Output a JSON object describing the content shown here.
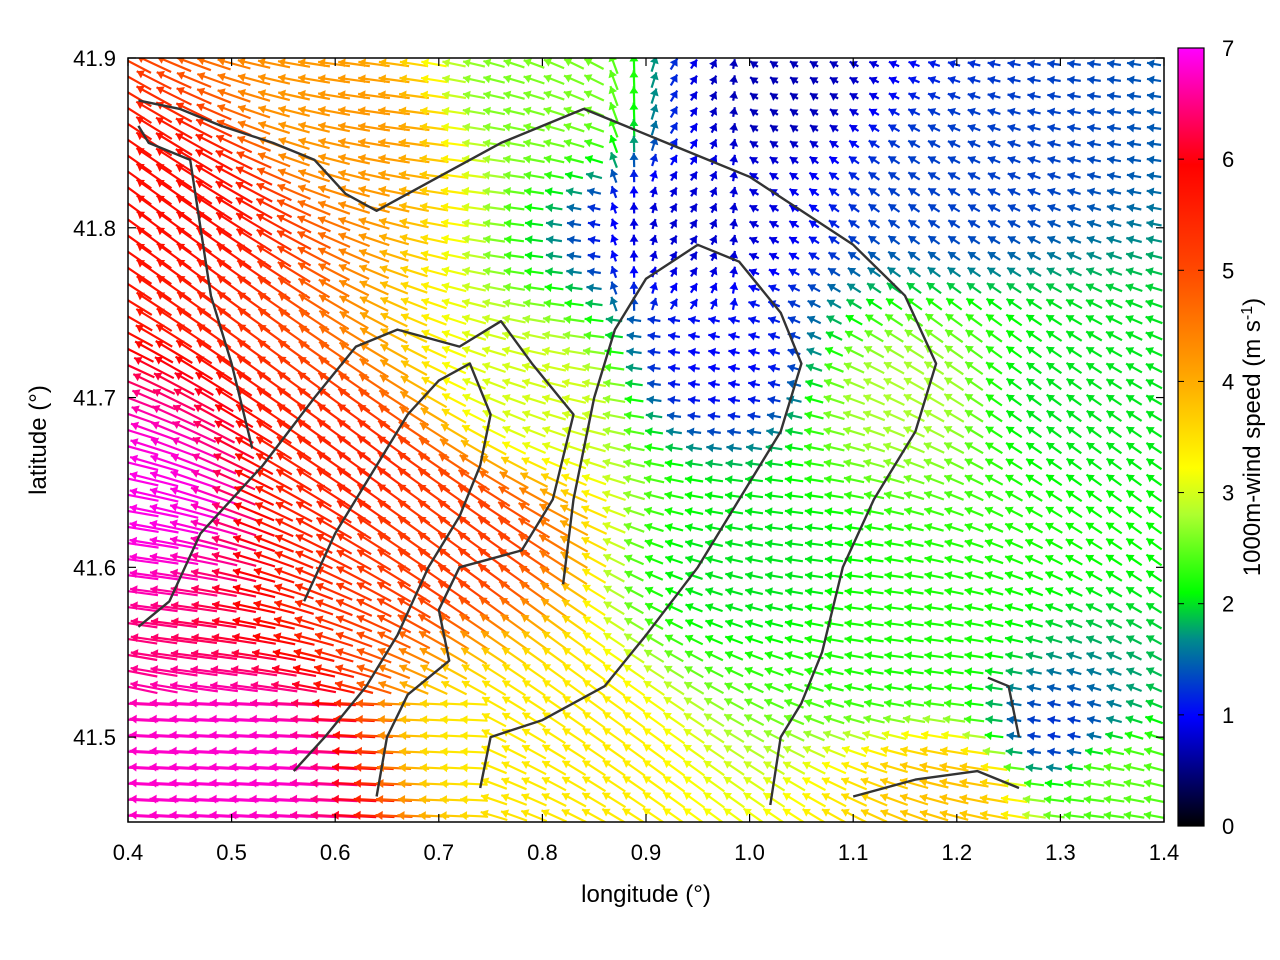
{
  "chart_data": {
    "type": "vector-field",
    "xlabel": "longitude (°)",
    "ylabel": "latitude (°)",
    "xlim": [
      0.4,
      1.4
    ],
    "ylim": [
      41.45,
      41.9
    ],
    "x_ticks": [
      "0.4",
      "0.5",
      "0.6",
      "0.7",
      "0.8",
      "0.9",
      "1.0",
      "1.1",
      "1.2",
      "1.3",
      "1.4"
    ],
    "y_ticks": [
      "41.5",
      "41.6",
      "41.7",
      "41.8",
      "41.9"
    ],
    "colorbar": {
      "label": "1000m-wind speed (m s-1)",
      "label_main": "1000m-wind speed (m s",
      "label_sup": "-1",
      "label_end": ")",
      "range": [
        0,
        7
      ],
      "ticks": [
        "0",
        "1",
        "2",
        "3",
        "4",
        "5",
        "6",
        "7"
      ],
      "colors": [
        "#000000",
        "#00008b",
        "#0000ff",
        "#008b8b",
        "#00ff00",
        "#adff2f",
        "#ffff00",
        "#ffa500",
        "#ff4500",
        "#ff0000",
        "#ff00ff"
      ]
    },
    "contour_color": "#333333",
    "speed_field_centers": [
      {
        "lon": 0.42,
        "lat": 41.64,
        "speed": 6.9
      },
      {
        "lon": 0.5,
        "lat": 41.48,
        "speed": 6.8
      },
      {
        "lon": 0.45,
        "lat": 41.82,
        "speed": 5.8
      },
      {
        "lon": 0.6,
        "lat": 41.65,
        "speed": 5.5
      },
      {
        "lon": 0.7,
        "lat": 41.62,
        "speed": 5.2
      },
      {
        "lon": 0.6,
        "lat": 41.86,
        "speed": 4.2
      },
      {
        "lon": 0.78,
        "lat": 41.5,
        "speed": 3.4
      },
      {
        "lon": 0.8,
        "lat": 41.88,
        "speed": 2.6
      },
      {
        "lon": 0.8,
        "lat": 41.7,
        "speed": 3.0
      },
      {
        "lon": 0.95,
        "lat": 41.8,
        "speed": 0.8
      },
      {
        "lon": 0.97,
        "lat": 41.72,
        "speed": 1.0
      },
      {
        "lon": 1.02,
        "lat": 41.88,
        "speed": 0.7
      },
      {
        "lon": 1.0,
        "lat": 41.6,
        "speed": 2.0
      },
      {
        "lon": 1.15,
        "lat": 41.55,
        "speed": 2.2
      },
      {
        "lon": 1.2,
        "lat": 41.83,
        "speed": 1.3
      },
      {
        "lon": 1.3,
        "lat": 41.7,
        "speed": 2.0
      },
      {
        "lon": 1.15,
        "lat": 41.7,
        "speed": 2.8
      },
      {
        "lon": 1.3,
        "lat": 41.5,
        "speed": 1.2
      },
      {
        "lon": 1.35,
        "lat": 41.48,
        "speed": 2.5
      },
      {
        "lon": 1.2,
        "lat": 41.47,
        "speed": 3.8
      }
    ],
    "contours": [
      [
        [
          0.41,
          41.565
        ],
        [
          0.44,
          41.58
        ],
        [
          0.47,
          41.62
        ],
        [
          0.53,
          41.66
        ],
        [
          0.58,
          41.7
        ],
        [
          0.62,
          41.73
        ],
        [
          0.66,
          41.74
        ],
        [
          0.72,
          41.73
        ],
        [
          0.76,
          41.745
        ],
        [
          0.79,
          41.72
        ],
        [
          0.83,
          41.69
        ],
        [
          0.81,
          41.64
        ],
        [
          0.78,
          41.61
        ],
        [
          0.72,
          41.6
        ],
        [
          0.7,
          41.575
        ],
        [
          0.71,
          41.545
        ],
        [
          0.67,
          41.525
        ],
        [
          0.65,
          41.5
        ],
        [
          0.64,
          41.465
        ]
      ],
      [
        [
          0.41,
          41.875
        ],
        [
          0.45,
          41.87
        ],
        [
          0.49,
          41.86
        ],
        [
          0.54,
          41.85
        ],
        [
          0.58,
          41.84
        ],
        [
          0.61,
          41.82
        ],
        [
          0.64,
          41.81
        ],
        [
          0.7,
          41.83
        ],
        [
          0.76,
          41.85
        ],
        [
          0.8,
          41.86
        ],
        [
          0.84,
          41.87
        ],
        [
          0.88,
          41.86
        ],
        [
          0.92,
          41.85
        ],
        [
          0.96,
          41.84
        ],
        [
          1.0,
          41.83
        ],
        [
          1.05,
          41.81
        ],
        [
          1.1,
          41.79
        ],
        [
          1.15,
          41.76
        ],
        [
          1.18,
          41.72
        ],
        [
          1.16,
          41.68
        ],
        [
          1.12,
          41.64
        ],
        [
          1.09,
          41.6
        ],
        [
          1.07,
          41.55
        ],
        [
          1.05,
          41.52
        ],
        [
          1.03,
          41.5
        ],
        [
          1.02,
          41.46
        ]
      ],
      [
        [
          0.52,
          41.67
        ],
        [
          0.5,
          41.72
        ],
        [
          0.48,
          41.76
        ],
        [
          0.47,
          41.8
        ],
        [
          0.46,
          41.84
        ],
        [
          0.42,
          41.85
        ],
        [
          0.41,
          41.86
        ]
      ],
      [
        [
          0.57,
          41.58
        ],
        [
          0.6,
          41.62
        ],
        [
          0.64,
          41.66
        ],
        [
          0.67,
          41.69
        ],
        [
          0.7,
          41.71
        ],
        [
          0.73,
          41.72
        ],
        [
          0.75,
          41.69
        ],
        [
          0.74,
          41.66
        ],
        [
          0.72,
          41.63
        ],
        [
          0.69,
          41.6
        ],
        [
          0.66,
          41.56
        ],
        [
          0.63,
          41.53
        ],
        [
          0.59,
          41.5
        ],
        [
          0.56,
          41.48
        ]
      ],
      [
        [
          0.82,
          41.59
        ],
        [
          0.83,
          41.64
        ],
        [
          0.85,
          41.7
        ],
        [
          0.87,
          41.74
        ],
        [
          0.9,
          41.77
        ],
        [
          0.95,
          41.79
        ],
        [
          0.99,
          41.78
        ],
        [
          1.03,
          41.75
        ],
        [
          1.05,
          41.72
        ],
        [
          1.03,
          41.68
        ],
        [
          0.99,
          41.64
        ],
        [
          0.95,
          41.6
        ],
        [
          0.9,
          41.56
        ],
        [
          0.86,
          41.53
        ],
        [
          0.8,
          41.51
        ],
        [
          0.75,
          41.5
        ],
        [
          0.74,
          41.47
        ]
      ],
      [
        [
          1.1,
          41.465
        ],
        [
          1.16,
          41.475
        ],
        [
          1.22,
          41.48
        ],
        [
          1.26,
          41.47
        ]
      ],
      [
        [
          1.23,
          41.535
        ],
        [
          1.25,
          41.53
        ],
        [
          1.26,
          41.5
        ]
      ]
    ]
  }
}
